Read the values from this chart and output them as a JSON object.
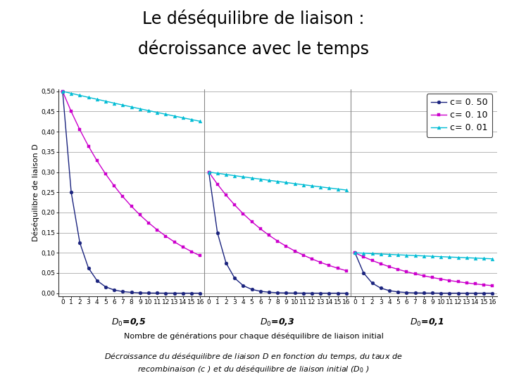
{
  "title_line1": "Le déséquilibre de liaison :",
  "title_line2": "décroissance avec le temps",
  "ylabel": "Déséquilibre de liaison D",
  "xlabel_main": "Nombre de générations pour chaque déséquilibre de liaison initial",
  "caption_line1": "Décroissance du déséquilibre de liaison $D$ en fonction du temps, du taux de",
  "caption_line2": "recombinaison ($c$ ) et du déséquilibre de liaison initial ($D_0$ )",
  "D0_values": [
    0.5,
    0.3,
    0.1
  ],
  "D0_labels": [
    "$D_0$=0,5",
    "$D_0$=0,3",
    "$D_0$=0,1"
  ],
  "c_values": [
    0.5,
    0.1,
    0.01
  ],
  "legend_labels": [
    "c= 0. 50",
    "c= 0. 10",
    "c= 0. 01"
  ],
  "colors": [
    "#1a237e",
    "#cc00cc",
    "#00bcd4"
  ],
  "markers": [
    "o",
    "s",
    "^"
  ],
  "marker_sizes": [
    3.5,
    3.5,
    3.5
  ],
  "n_generations": 17,
  "ylim": [
    0.0,
    0.5
  ],
  "yticks": [
    0.0,
    0.05,
    0.1,
    0.15,
    0.2,
    0.25,
    0.3,
    0.35,
    0.4,
    0.45,
    0.5
  ],
  "ytick_labels": [
    "0,00",
    "0,05",
    "0,10",
    "0,15",
    "0,20",
    "0,25",
    "0,30",
    "0,35",
    "0,40",
    "0,45",
    "0,50"
  ],
  "background_color": "#ffffff",
  "grid_color": "#999999",
  "sep_color": "#888888",
  "title_fontsize": 17,
  "axis_label_fontsize": 8,
  "tick_fontsize": 6.5,
  "legend_fontsize": 9,
  "caption_fontsize": 8
}
